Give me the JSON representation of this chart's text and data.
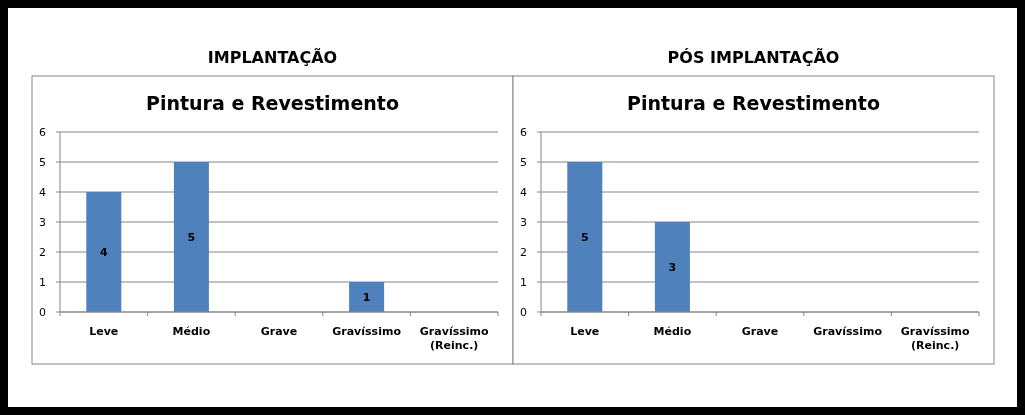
{
  "chart_data": [
    {
      "type": "bar",
      "title": "IMPLANTAÇÃO",
      "subtitle": "Pintura e Revestimento",
      "categories": [
        "Leve",
        "Médio",
        "Grave",
        "Gravíssimo",
        "Gravíssimo (Reinc.)"
      ],
      "values": [
        4,
        5,
        0,
        1,
        0
      ],
      "value_labels": [
        "4",
        "5",
        null,
        "1",
        null
      ],
      "color": "#4f81bd",
      "ylim": [
        0,
        6
      ],
      "yticks": [
        0,
        1,
        2,
        3,
        4,
        5,
        6
      ],
      "grid": "y"
    },
    {
      "type": "bar",
      "title": "PÓS IMPLANTAÇÃO",
      "subtitle": "Pintura e Revestimento",
      "categories": [
        "Leve",
        "Médio",
        "Grave",
        "Gravíssimo",
        "Gravíssimo (Reinc.)"
      ],
      "values": [
        5,
        3,
        0,
        0,
        0
      ],
      "value_labels": [
        "5",
        "3",
        null,
        null,
        null
      ],
      "color": "#4f81bd",
      "ylim": [
        0,
        6
      ],
      "yticks": [
        0,
        1,
        2,
        3,
        4,
        5,
        6
      ],
      "grid": "y"
    }
  ]
}
